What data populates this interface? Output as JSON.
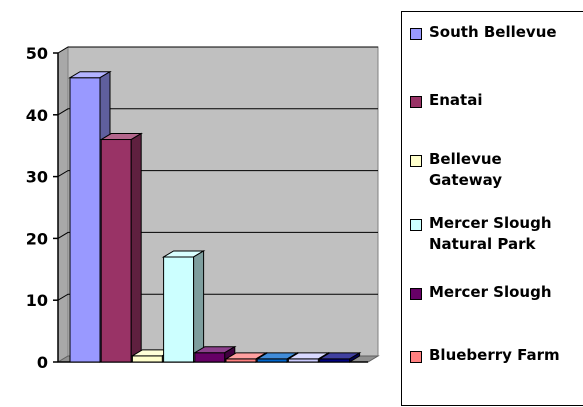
{
  "chart_data": {
    "type": "bar",
    "style": "3d-column",
    "categories": [
      "South Bellevue",
      "Enatai",
      "Bellevue Gateway",
      "Mercer Slough Natural Park",
      "Mercer Slough",
      "Blueberry Farm",
      "",
      "",
      ""
    ],
    "values": [
      46,
      36,
      1,
      17,
      1.5,
      0.5,
      0.5,
      0.5,
      0.5
    ],
    "colors": [
      "#9999ff",
      "#993366",
      "#ffffcc",
      "#ccffff",
      "#660066",
      "#ff8080",
      "#0066cc",
      "#ccccff",
      "#000080"
    ],
    "ylim": [
      0,
      50
    ],
    "yticks": [
      "0",
      "10",
      "20",
      "30",
      "40",
      "50"
    ],
    "grid": true,
    "plot_background": "#c0c0c0",
    "legend_position": "right",
    "legend": [
      {
        "label": "South Bellevue",
        "color": "#9999ff"
      },
      {
        "label": "Enatai",
        "color": "#993366"
      },
      {
        "label": "Bellevue Gateway",
        "color": "#ffffcc"
      },
      {
        "label": "Mercer Slough Natural Park",
        "color": "#ccffff"
      },
      {
        "label": "Mercer Slough",
        "color": "#660066"
      },
      {
        "label": "Blueberry Farm",
        "color": "#ff8080"
      }
    ]
  }
}
